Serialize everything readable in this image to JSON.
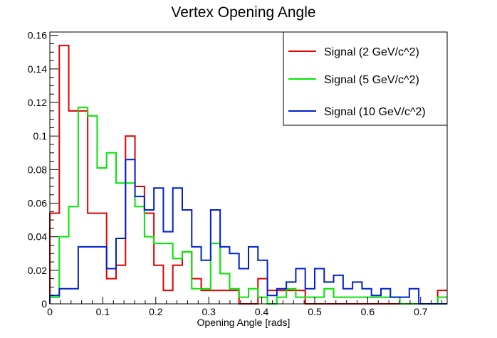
{
  "chart_data": {
    "type": "line",
    "style": "step-histogram",
    "title": "Vertex Opening Angle",
    "xlabel": "Opening Angle [rads]",
    "ylabel": "",
    "xlim": [
      0,
      0.75
    ],
    "ylim": [
      0,
      0.162
    ],
    "x_ticks": [
      0,
      0.1,
      0.2,
      0.3,
      0.4,
      0.5,
      0.6,
      0.7
    ],
    "x_tick_labels": [
      "0",
      "0.1",
      "0.2",
      "0.3",
      "0.4",
      "0.5",
      "0.6",
      "0.7"
    ],
    "y_ticks": [
      0,
      0.02,
      0.04,
      0.06,
      0.08,
      0.1,
      0.12,
      0.14,
      0.16
    ],
    "y_tick_labels": [
      "0",
      "0.02",
      "0.04",
      "0.06",
      "0.08",
      "0.1",
      "0.12",
      "0.14",
      "0.16"
    ],
    "grid": false,
    "legend_position": "top-right",
    "bin_edges": [
      0,
      0.01786,
      0.03571,
      0.05357,
      0.07143,
      0.08929,
      0.10714,
      0.125,
      0.14286,
      0.16071,
      0.17857,
      0.19643,
      0.21429,
      0.23214,
      0.25,
      0.26786,
      0.28571,
      0.30357,
      0.32143,
      0.33929,
      0.35714,
      0.375,
      0.39286,
      0.41071,
      0.42857,
      0.44643,
      0.46429,
      0.48214,
      0.5,
      0.51786,
      0.53571,
      0.55357,
      0.57143,
      0.58929,
      0.60714,
      0.625,
      0.64286,
      0.66071,
      0.67857,
      0.69643,
      0.71429,
      0.73214,
      0.75
    ],
    "series": [
      {
        "name": "Signal (2 GeV/c^2)",
        "color": "#e00000",
        "values": [
          0.054,
          0.154,
          0.115,
          0.115,
          0.054,
          0.054,
          0.015,
          0.023,
          0.1,
          0.07,
          0.054,
          0.023,
          0.008,
          0.023,
          0.031,
          0.015,
          0.008,
          0.008,
          0.008,
          0.008,
          0.0,
          0.0,
          0.015,
          0.008,
          0.008,
          0.008,
          0.008,
          0.0,
          0.0,
          0.0,
          0.0,
          0.0,
          0.0,
          0.0,
          0.0,
          0.0,
          0.0,
          0.0,
          0.0,
          0.0,
          0.0,
          0.008
        ]
      },
      {
        "name": "Signal (5 GeV/c^2)",
        "color": "#00e800",
        "values": [
          0.004,
          0.04,
          0.058,
          0.117,
          0.112,
          0.081,
          0.09,
          0.072,
          0.072,
          0.058,
          0.04,
          0.036,
          0.036,
          0.027,
          0.031,
          0.009,
          0.009,
          0.036,
          0.018,
          0.009,
          0.004,
          0.009,
          0.004,
          0.0,
          0.004,
          0.009,
          0.004,
          0.004,
          0.004,
          0.009,
          0.004,
          0.004,
          0.004,
          0.004,
          0.004,
          0.004,
          0.004,
          0.0,
          0.0,
          0.0,
          0.0,
          0.004
        ]
      },
      {
        "name": "Signal (10 GeV/c^2)",
        "color": "#0020d0",
        "values": [
          0.005,
          0.009,
          0.009,
          0.034,
          0.034,
          0.034,
          0.021,
          0.039,
          0.086,
          0.064,
          0.056,
          0.069,
          0.043,
          0.069,
          0.056,
          0.034,
          0.026,
          0.056,
          0.034,
          0.03,
          0.021,
          0.034,
          0.026,
          0.005,
          0.009,
          0.013,
          0.021,
          0.009,
          0.021,
          0.013,
          0.017,
          0.009,
          0.013,
          0.009,
          0.005,
          0.009,
          0.004,
          0.004,
          0.009,
          0.0,
          0.0,
          0.0
        ]
      }
    ]
  }
}
